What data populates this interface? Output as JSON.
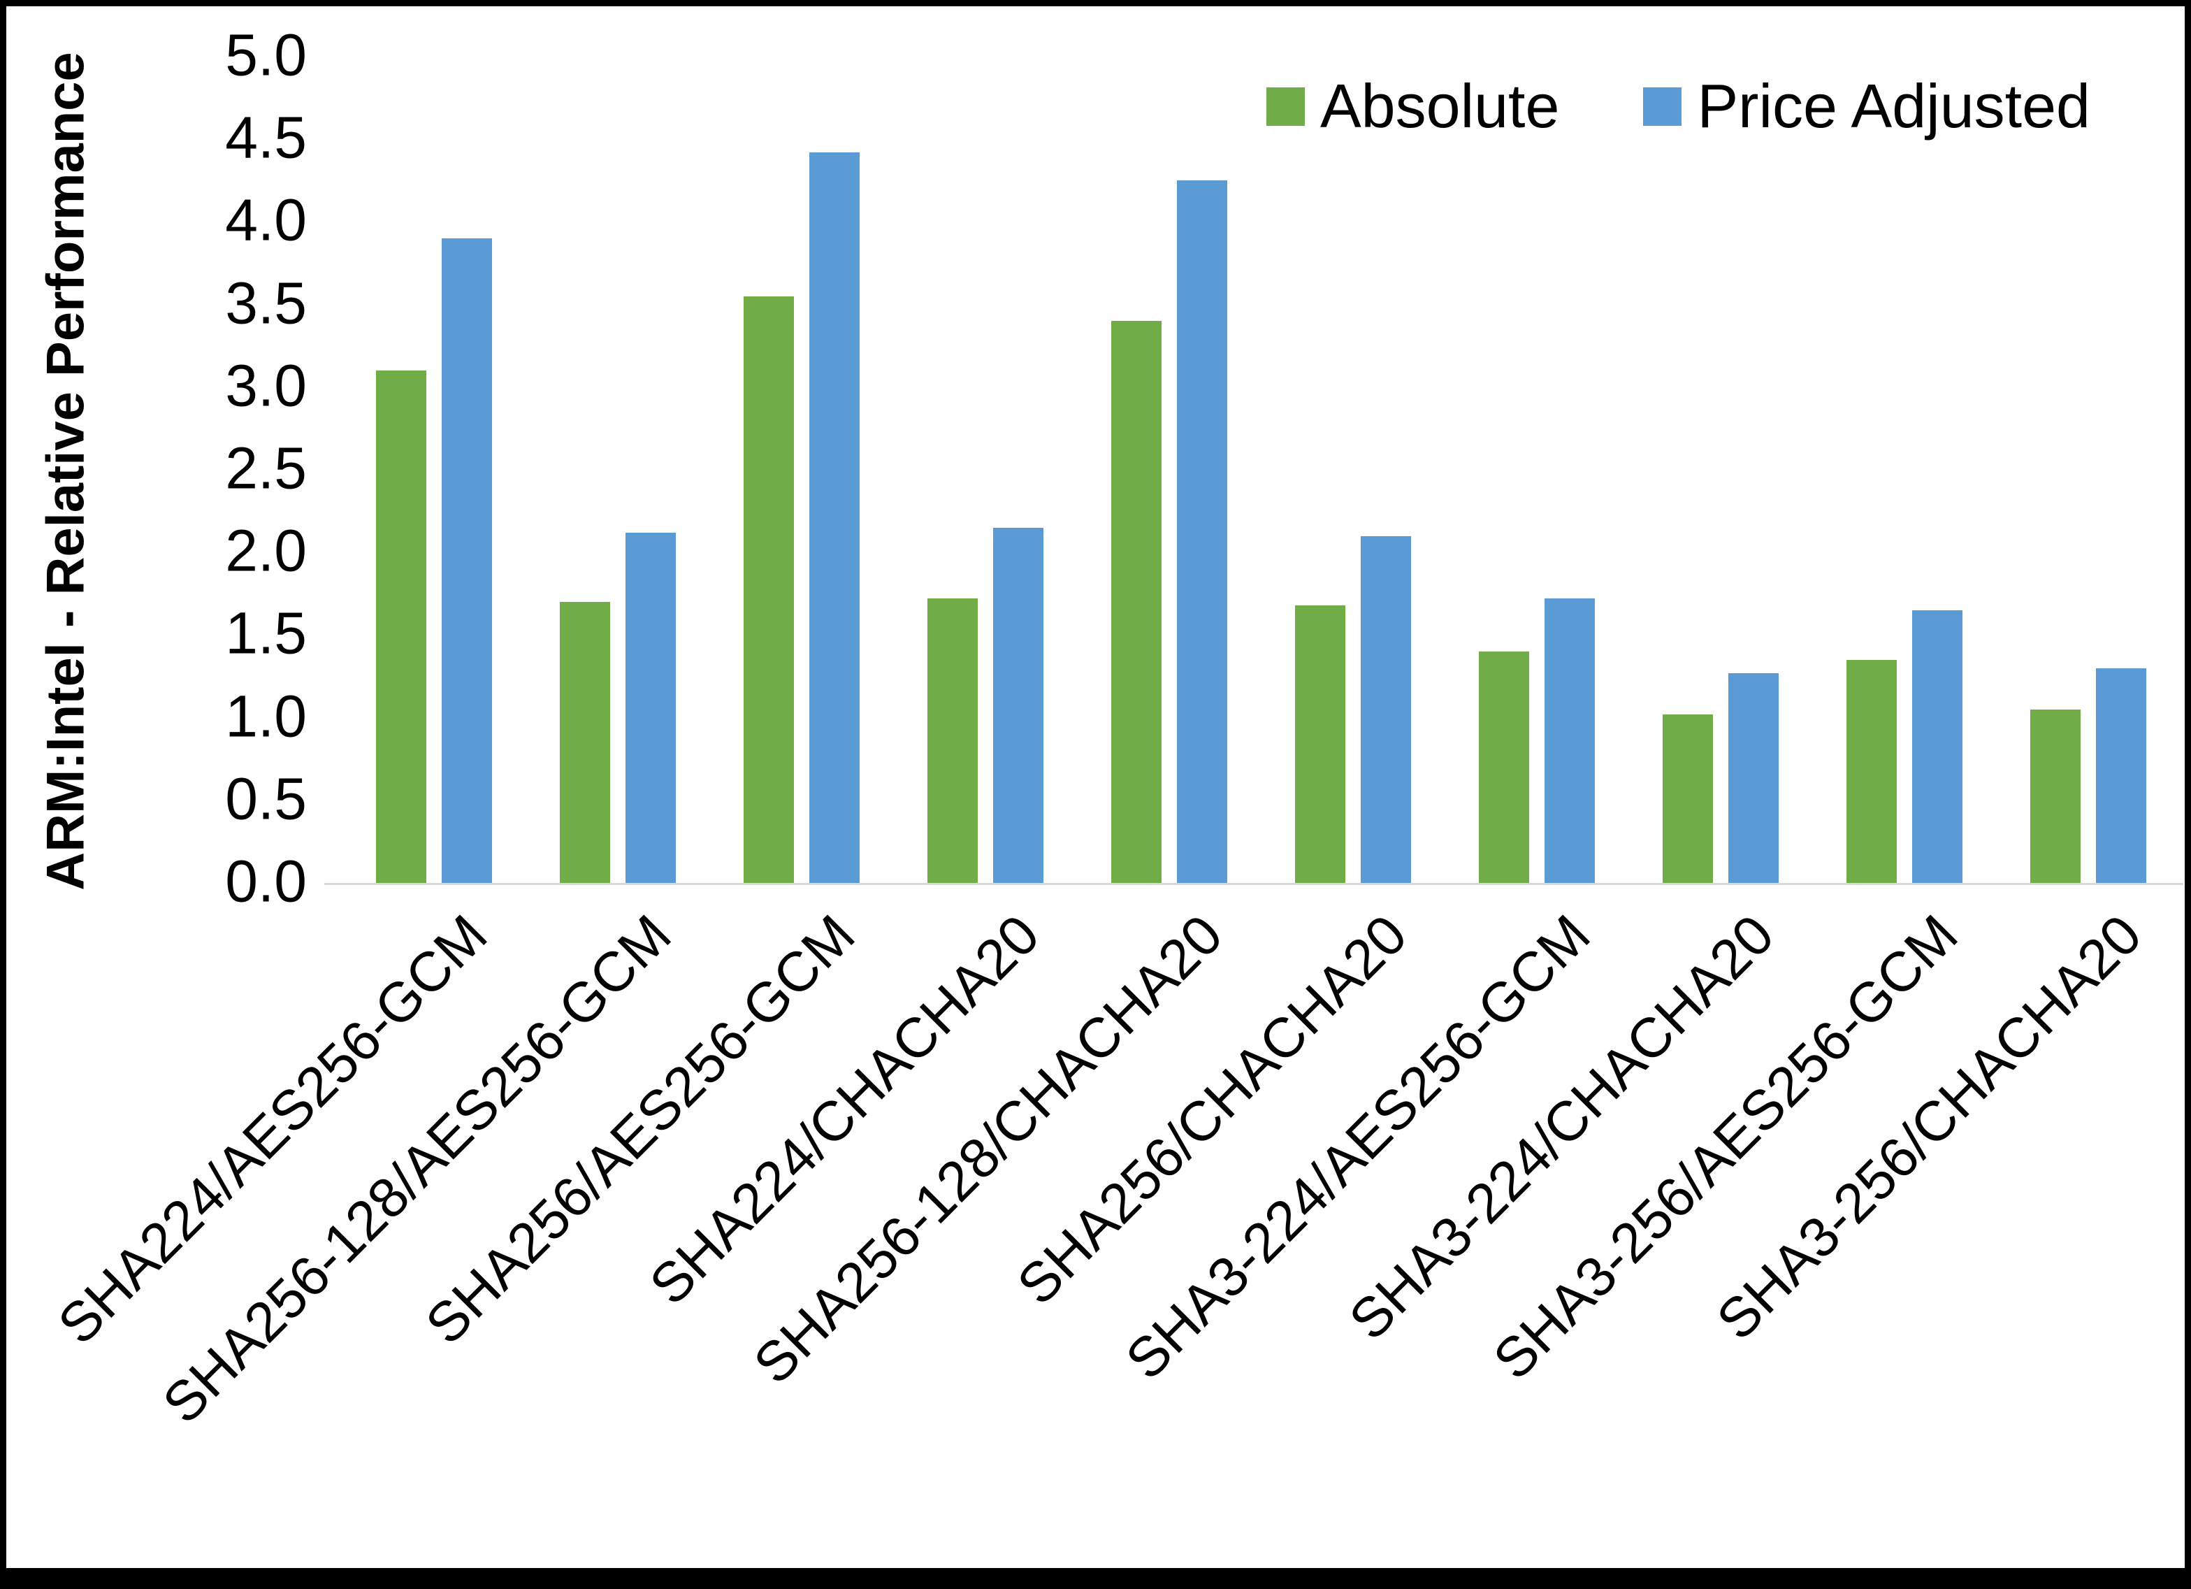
{
  "chart_data": {
    "type": "bar",
    "title": "",
    "ylabel": "ARM:Intel - Relative Performance",
    "xlabel": "",
    "ylim": [
      0,
      5
    ],
    "ytick_step": 0.5,
    "yticks": [
      "5.0",
      "4.5",
      "4.0",
      "3.5",
      "3.0",
      "2.5",
      "2.0",
      "1.5",
      "1.0",
      "0.5",
      "0.0"
    ],
    "categories": [
      "SHA224/AES256-GCM",
      "SHA256-128/AES256-GCM",
      "SHA256/AES256-GCM",
      "SHA224/CHACHA20",
      "SHA256-128/CHACHA20",
      "SHA256/CHACHA20",
      "SHA3-224/AES256-GCM",
      "SHA3-224/CHACHA20",
      "SHA3-256/AES256-GCM",
      "SHA3-256/CHACHA20"
    ],
    "series": [
      {
        "name": "Absolute",
        "color": "#70AD47",
        "values": [
          3.1,
          1.7,
          3.55,
          1.72,
          3.4,
          1.68,
          1.4,
          1.02,
          1.35,
          1.05
        ]
      },
      {
        "name": "Price Adjusted",
        "color": "#5B9BD5",
        "values": [
          3.9,
          2.12,
          4.42,
          2.15,
          4.25,
          2.1,
          1.72,
          1.27,
          1.65,
          1.3
        ]
      }
    ],
    "legend_position": "top-right",
    "grid": false,
    "axis_line_color": "#d9d9d9"
  }
}
